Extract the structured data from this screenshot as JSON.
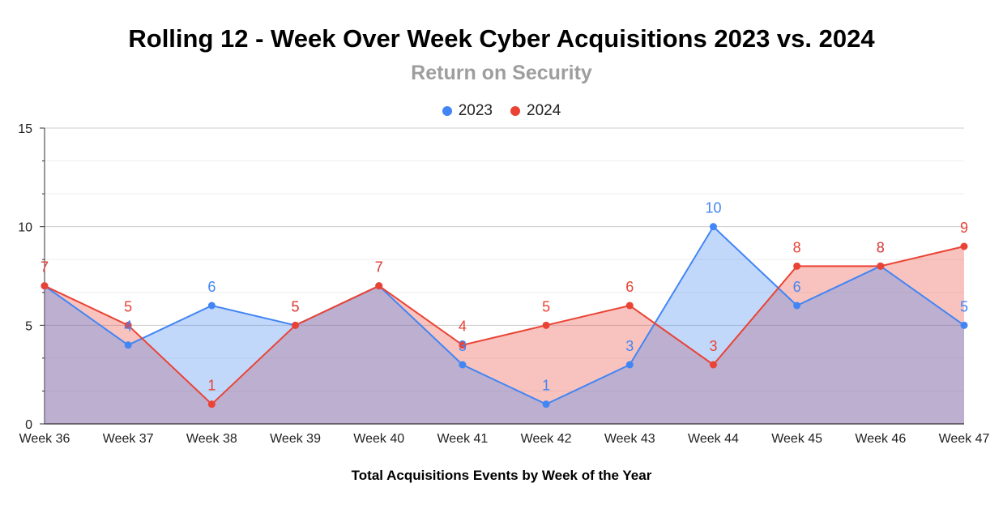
{
  "chart_data": {
    "type": "area",
    "title": "Rolling 12 - Week Over Week Cyber Acquisitions 2023 vs. 2024",
    "subtitle": "Return on Security",
    "xlabel": "Total Acquisitions Events by Week of the Year",
    "ylabel": "",
    "categories": [
      "Week 36",
      "Week 37",
      "Week 38",
      "Week 39",
      "Week 40",
      "Week 41",
      "Week 42",
      "Week 43",
      "Week 44",
      "Week 45",
      "Week 46",
      "Week 47"
    ],
    "series": [
      {
        "name": "2023",
        "color": "#4285f4",
        "values": [
          7,
          4,
          6,
          5,
          7,
          3,
          1,
          3,
          10,
          6,
          8,
          5
        ]
      },
      {
        "name": "2024",
        "color": "#ea4335",
        "values": [
          7,
          5,
          1,
          5,
          7,
          4,
          5,
          6,
          3,
          8,
          8,
          9
        ]
      }
    ],
    "ylim": [
      0,
      15
    ],
    "yticks": [
      0,
      5,
      10,
      15
    ],
    "grid": true,
    "legend": "top-center",
    "data_labels": true
  }
}
